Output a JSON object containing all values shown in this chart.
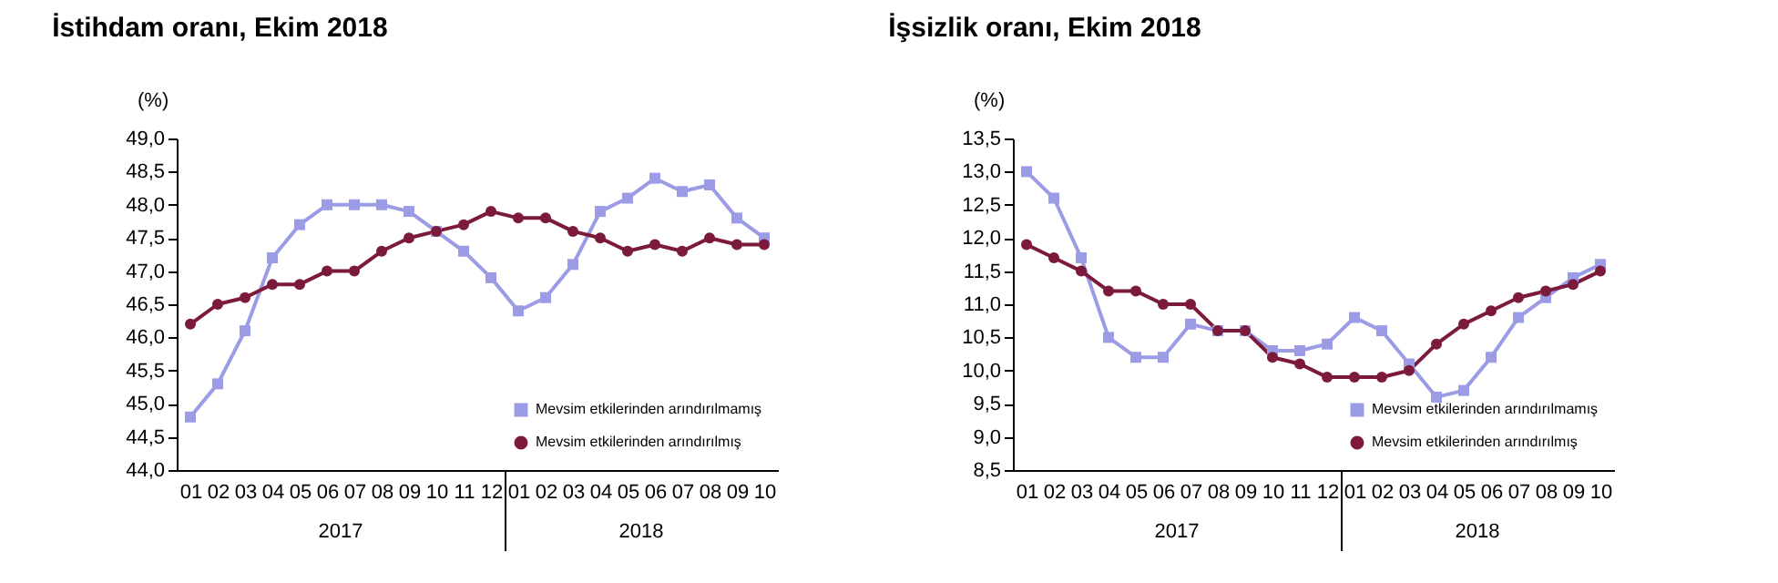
{
  "chart_data": [
    {
      "type": "line",
      "title": "İstihdam oranı, Ekim 2018",
      "ylabel": "(%)",
      "categories": [
        "01",
        "02",
        "03",
        "04",
        "05",
        "06",
        "07",
        "08",
        "09",
        "10",
        "11",
        "12",
        "01",
        "02",
        "03",
        "04",
        "05",
        "06",
        "07",
        "08",
        "09",
        "10"
      ],
      "annotations": [
        "2017",
        "2018"
      ],
      "series": [
        {
          "name": "Mevsim etkilerinden arındırılmamış",
          "color": "#9b9be6",
          "marker": "square",
          "values": [
            44.8,
            45.3,
            46.1,
            47.2,
            47.7,
            48.0,
            48.0,
            48.0,
            47.9,
            47.6,
            47.3,
            46.9,
            46.4,
            46.6,
            47.1,
            47.9,
            48.1,
            48.4,
            48.2,
            48.3,
            47.8,
            47.5
          ]
        },
        {
          "name": "Mevsim etkilerinden arındırılmış",
          "color": "#7b1a3a",
          "marker": "circle",
          "values": [
            46.2,
            46.5,
            46.6,
            46.8,
            46.8,
            47.0,
            47.0,
            47.3,
            47.5,
            47.6,
            47.7,
            47.9,
            47.8,
            47.8,
            47.6,
            47.5,
            47.3,
            47.4,
            47.3,
            47.5,
            47.4,
            47.4
          ]
        }
      ],
      "ylim": [
        44,
        49
      ],
      "yticks": [
        {
          "value": 44,
          "label": "44,0"
        },
        {
          "value": 44.5,
          "label": "44,5"
        },
        {
          "value": 45,
          "label": "45,0"
        },
        {
          "value": 45.5,
          "label": "45,5"
        },
        {
          "value": 46,
          "label": "46,0"
        },
        {
          "value": 46.5,
          "label": "46,5"
        },
        {
          "value": 47,
          "label": "47,0"
        },
        {
          "value": 47.5,
          "label": "47,5"
        },
        {
          "value": 48,
          "label": "48,0"
        },
        {
          "value": 48.5,
          "label": "48,5"
        },
        {
          "value": 49,
          "label": "49,0"
        }
      ],
      "grid": false,
      "legend": "bottom right"
    },
    {
      "type": "line",
      "title": "İşsizlik oranı, Ekim 2018",
      "ylabel": "(%)",
      "categories": [
        "01",
        "02",
        "03",
        "04",
        "05",
        "06",
        "07",
        "08",
        "09",
        "10",
        "11",
        "12",
        "01",
        "02",
        "03",
        "04",
        "05",
        "06",
        "07",
        "08",
        "09",
        "10"
      ],
      "annotations": [
        "2017",
        "2018"
      ],
      "series": [
        {
          "name": "Mevsim etkilerinden arındırılmamış",
          "color": "#9b9be6",
          "marker": "square",
          "values": [
            13.0,
            12.6,
            11.7,
            10.5,
            10.2,
            10.2,
            10.7,
            10.6,
            10.6,
            10.3,
            10.3,
            10.4,
            10.8,
            10.6,
            10.1,
            9.6,
            9.7,
            10.2,
            10.8,
            11.1,
            11.4,
            11.6
          ]
        },
        {
          "name": "Mevsim etkilerinden arındırılmış",
          "color": "#7b1a3a",
          "marker": "circle",
          "values": [
            11.9,
            11.7,
            11.5,
            11.2,
            11.2,
            11.0,
            11.0,
            10.6,
            10.6,
            10.2,
            10.1,
            9.9,
            9.9,
            9.9,
            10.0,
            10.4,
            10.7,
            10.9,
            11.1,
            11.2,
            11.3,
            11.5
          ]
        }
      ],
      "ylim": [
        8.5,
        13.5
      ],
      "yticks": [
        {
          "value": 8.5,
          "label": "8,5"
        },
        {
          "value": 9,
          "label": "9,0"
        },
        {
          "value": 9.5,
          "label": "9,5"
        },
        {
          "value": 10,
          "label": "10,0"
        },
        {
          "value": 10.5,
          "label": "10,5"
        },
        {
          "value": 11,
          "label": "11,0"
        },
        {
          "value": 11.5,
          "label": "11,5"
        },
        {
          "value": 12,
          "label": "12,0"
        },
        {
          "value": 12.5,
          "label": "12,5"
        },
        {
          "value": 13,
          "label": "13,0"
        },
        {
          "value": 13.5,
          "label": "13,5"
        }
      ],
      "grid": false,
      "legend": "bottom right"
    }
  ]
}
